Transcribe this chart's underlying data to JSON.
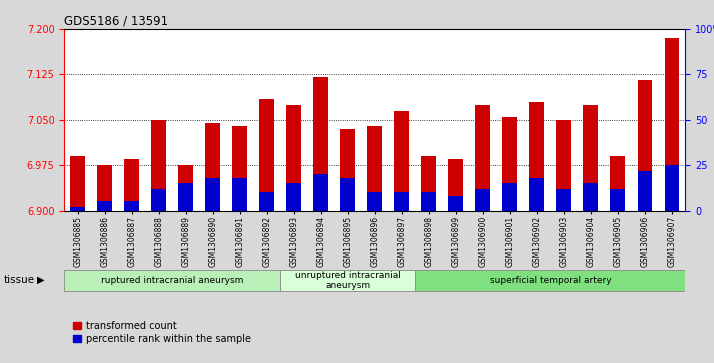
{
  "title": "GDS5186 / 13591",
  "samples": [
    "GSM1306885",
    "GSM1306886",
    "GSM1306887",
    "GSM1306888",
    "GSM1306889",
    "GSM1306890",
    "GSM1306891",
    "GSM1306892",
    "GSM1306893",
    "GSM1306894",
    "GSM1306895",
    "GSM1306896",
    "GSM1306897",
    "GSM1306898",
    "GSM1306899",
    "GSM1306900",
    "GSM1306901",
    "GSM1306902",
    "GSM1306903",
    "GSM1306904",
    "GSM1306905",
    "GSM1306906",
    "GSM1306907"
  ],
  "transformed_count": [
    6.99,
    6.975,
    6.985,
    7.05,
    6.975,
    7.045,
    7.04,
    7.085,
    7.075,
    7.12,
    7.035,
    7.04,
    7.065,
    6.99,
    6.985,
    7.075,
    7.055,
    7.08,
    7.05,
    7.075,
    6.99,
    7.115,
    7.185
  ],
  "percentile_rank": [
    2,
    5,
    5,
    12,
    15,
    18,
    18,
    10,
    15,
    20,
    18,
    10,
    10,
    10,
    8,
    12,
    15,
    18,
    12,
    15,
    12,
    22,
    25
  ],
  "groups": [
    {
      "label": "ruptured intracranial aneurysm",
      "start": 0,
      "end": 8,
      "color": "#b8f0b8"
    },
    {
      "label": "unruptured intracranial\naneurysm",
      "start": 8,
      "end": 13,
      "color": "#d8ffd8"
    },
    {
      "label": "superficial temporal artery",
      "start": 13,
      "end": 23,
      "color": "#80e080"
    }
  ],
  "ylim_left": [
    6.9,
    7.2
  ],
  "yticks_left": [
    6.9,
    6.975,
    7.05,
    7.125,
    7.2
  ],
  "ylim_right": [
    0,
    100
  ],
  "yticks_right": [
    0,
    25,
    50,
    75,
    100
  ],
  "bar_color": "#cc0000",
  "percentile_color": "#0000cc",
  "background_color": "#d8d8d8",
  "plot_bg_color": "#ffffff",
  "legend_red_label": "transformed count",
  "legend_blue_label": "percentile rank within the sample"
}
